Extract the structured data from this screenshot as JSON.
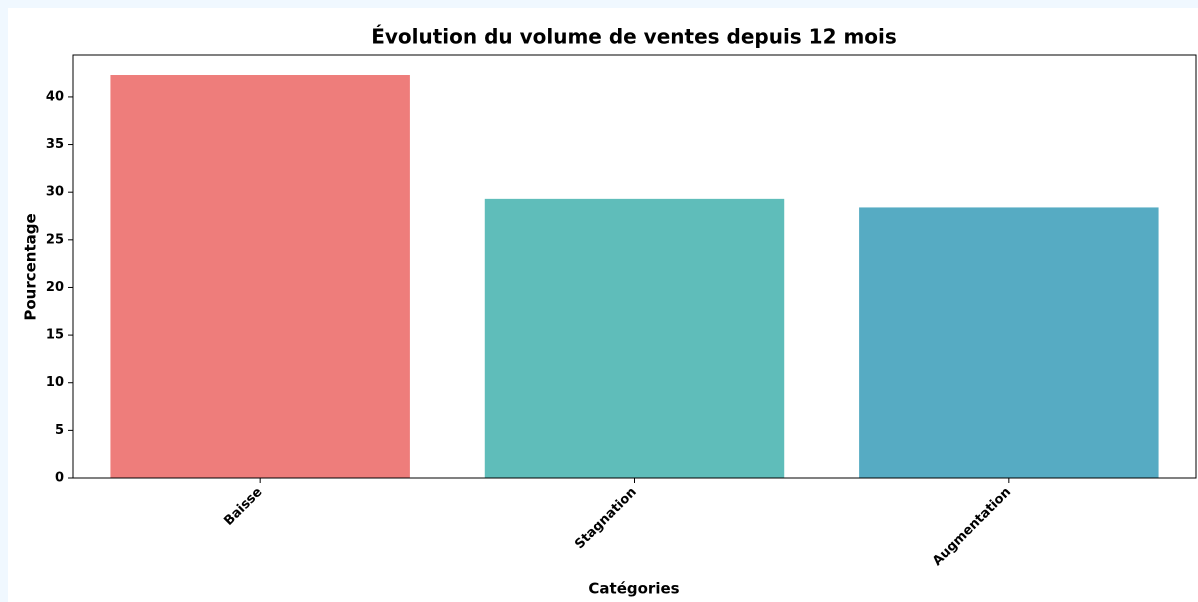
{
  "chart_data": {
    "type": "bar",
    "title": "Évolution du volume de ventes depuis 12 mois",
    "xlabel": "Catégories",
    "ylabel": "Pourcentage",
    "categories": [
      "Baisse",
      "Stagnation",
      "Augmentation"
    ],
    "values": [
      42.3,
      29.3,
      28.4
    ],
    "colors": [
      "#ee7d7b",
      "#5fbdba",
      "#56abc3"
    ],
    "ylim": [
      0,
      44.4
    ],
    "yticks": [
      0,
      5,
      10,
      15,
      20,
      25,
      30,
      35,
      40
    ],
    "grid": false
  }
}
